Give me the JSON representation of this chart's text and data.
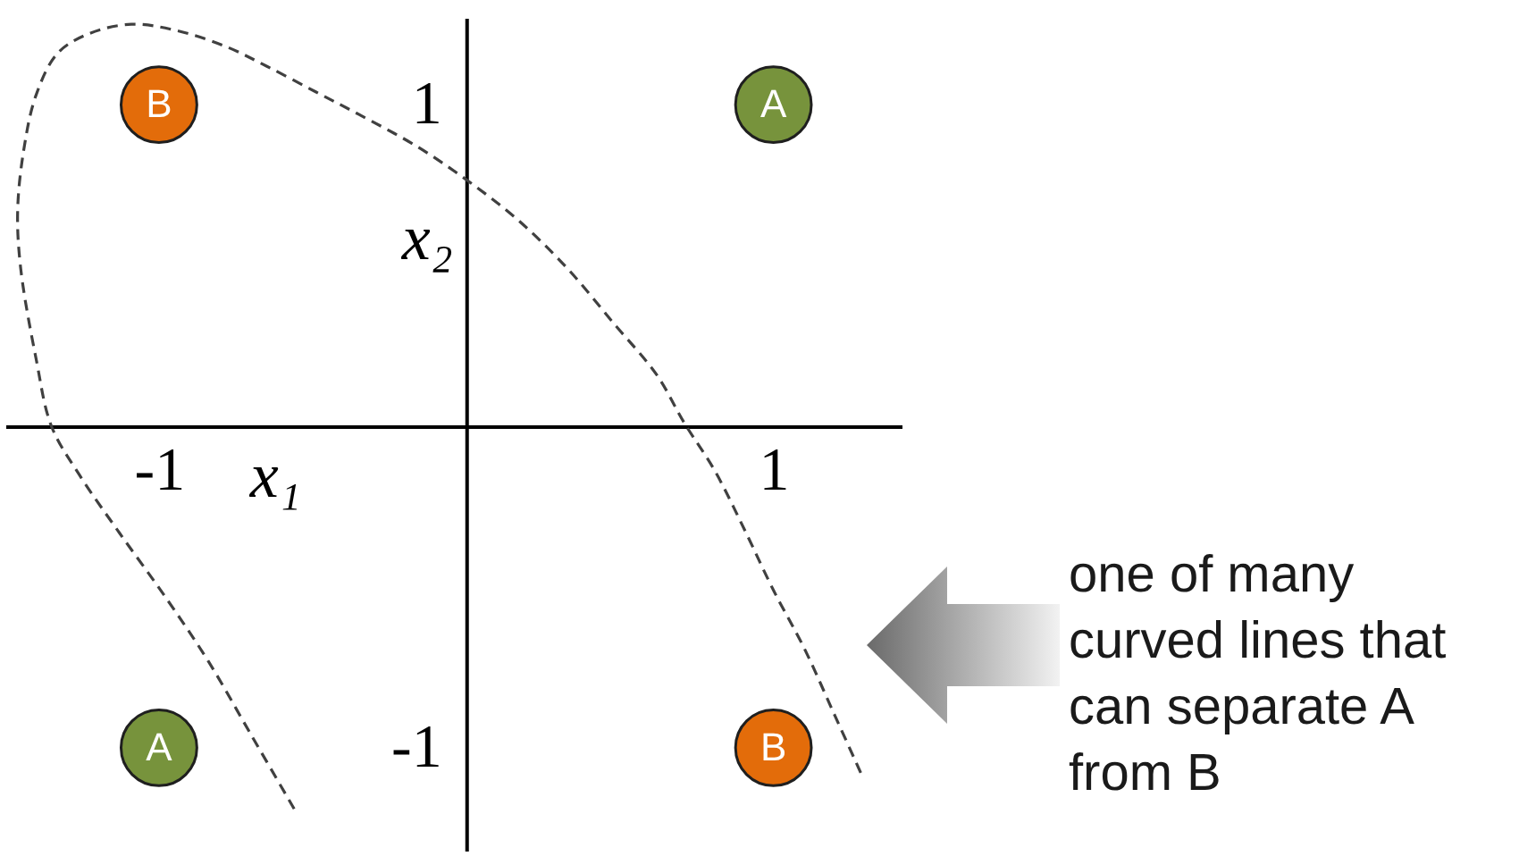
{
  "chart_data": {
    "type": "scatter",
    "xlabel": "x₁",
    "ylabel": "x₂",
    "xlim": [
      -1.5,
      1.42
    ],
    "ylim": [
      -1.32,
      1.27
    ],
    "xticks": [
      -1,
      1
    ],
    "yticks": [
      -1,
      1
    ],
    "series": [
      {
        "name": "A",
        "color": "#77933c",
        "marker": "circle",
        "x": [
          1,
          -1
        ],
        "values": [
          1,
          -1
        ]
      },
      {
        "name": "B",
        "color": "#e36c0a",
        "marker": "circle",
        "x": [
          -1,
          1
        ],
        "values": [
          1,
          -1
        ]
      },
      {
        "type": "line",
        "color": "#404040",
        "line_style": "dashed",
        "x": [
          -0.56,
          -0.7,
          -0.84,
          -0.98,
          -1.13,
          -1.26,
          -1.35,
          -1.4,
          -1.45,
          -1.46,
          -1.44,
          -1.4,
          -1.33,
          -1.23,
          -1.09,
          -0.94,
          -0.78,
          -0.65,
          -0.49,
          -0.35,
          -0.16,
          0.01,
          0.17,
          0.33,
          0.48,
          0.62,
          0.71,
          0.81,
          0.91,
          1.0,
          1.1,
          1.2,
          1.29
        ],
        "values": [
          -1.19,
          -0.96,
          -0.73,
          -0.53,
          -0.33,
          -0.15,
          0,
          0.21,
          0.49,
          0.67,
          0.86,
          1.03,
          1.16,
          1.22,
          1.25,
          1.23,
          1.18,
          1.12,
          1.04,
          0.97,
          0.87,
          0.76,
          0.64,
          0.49,
          0.32,
          0.16,
          0.01,
          -0.14,
          -0.33,
          -0.51,
          -0.69,
          -0.9,
          -1.09
        ]
      }
    ],
    "annotations": [
      "one of many curved lines that can separate A from B"
    ]
  }
}
